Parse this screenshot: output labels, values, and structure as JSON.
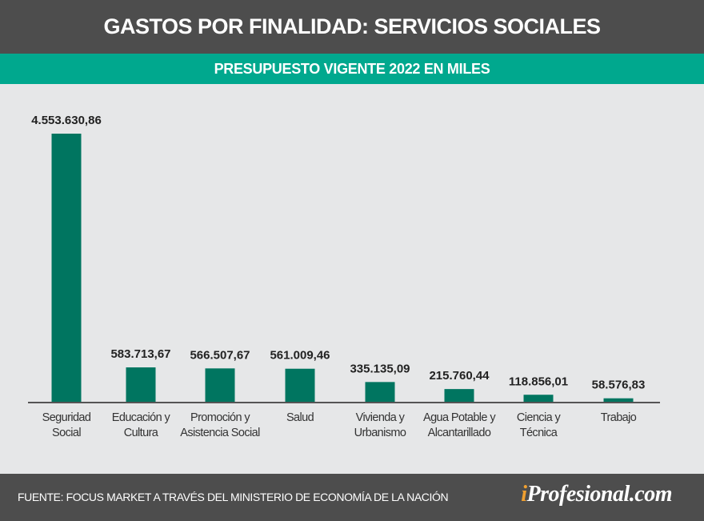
{
  "header": {
    "title": "GASTOS POR FINALIDAD: SERVICIOS SOCIALES",
    "subtitle": "PRESUPUESTO VIGENTE 2022 EN MILES"
  },
  "footer": {
    "source": "FUENTE: FOCUS MARKET A TRAVÉS DEL MINISTERIO DE ECONOMÍA DE LA NACIÓN",
    "logo_prefix": "i",
    "logo_rest": "Profesional.com"
  },
  "colors": {
    "header": "#4d4d4d",
    "band": "#00a88e",
    "bar": "#007560",
    "background": "#e6e7e8",
    "logo_accent": "#f0a030"
  },
  "chart_data": {
    "type": "bar",
    "title": "GASTOS POR FINALIDAD: SERVICIOS SOCIALES",
    "subtitle": "PRESUPUESTO VIGENTE 2022 EN MILES",
    "categories": [
      [
        "Seguridad",
        "Social"
      ],
      [
        "Educación y",
        "Cultura"
      ],
      [
        "Promoción y",
        "Asistencia Social"
      ],
      [
        "Salud"
      ],
      [
        "Vivienda y",
        "Urbanismo"
      ],
      [
        "Agua Potable y",
        "Alcantarillado"
      ],
      [
        "Ciencia y",
        "Técnica"
      ],
      [
        "Trabajo"
      ]
    ],
    "values": [
      4553630.86,
      583713.67,
      566507.67,
      561009.46,
      335135.09,
      215760.44,
      118856.01,
      58576.83
    ],
    "value_labels": [
      "4.553.630,86",
      "583.713,67",
      "566.507,67",
      "561.009,46",
      "335.135,09",
      "215.760,44",
      "118.856,01",
      "58.576,83"
    ],
    "ylim": [
      0,
      4553630.86
    ],
    "grid": false,
    "legend": "none"
  }
}
